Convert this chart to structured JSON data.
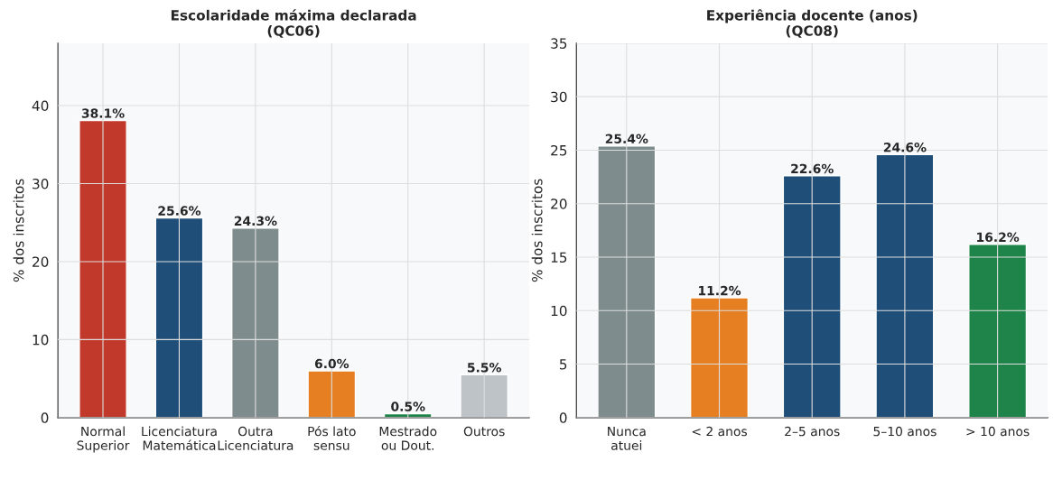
{
  "chart_data": [
    {
      "type": "bar",
      "title": "Escolaridade máxima declarada\n(QC06)",
      "ylabel": "% dos inscritos",
      "categories": [
        "Normal\nSuperior",
        "Licenciatura\nMatemática",
        "Outra\nLicenciatura",
        "Pós lato\nsensu",
        "Mestrado\nou Dout.",
        "Outros"
      ],
      "values": [
        38.1,
        25.6,
        24.3,
        6.0,
        0.5,
        5.5
      ],
      "colors": [
        "#c0392b",
        "#1f4e79",
        "#7f8c8d",
        "#e67e22",
        "#1e8449",
        "#bdc3c7"
      ],
      "value_labels": [
        "38.1%",
        "25.6%",
        "24.3%",
        "6.0%",
        "0.5%",
        "5.5%"
      ],
      "ylim": [
        0,
        48
      ],
      "yticks": [
        0,
        10,
        20,
        30,
        40
      ],
      "grid": true,
      "legend": false
    },
    {
      "type": "bar",
      "title": "Experiência docente (anos)\n(QC08)",
      "ylabel": "% dos inscritos",
      "categories": [
        "Nunca\natuei",
        "< 2 anos",
        "2–5 anos",
        "5–10 anos",
        "> 10 anos"
      ],
      "values": [
        25.4,
        11.2,
        22.6,
        24.6,
        16.2
      ],
      "colors": [
        "#7f8c8d",
        "#e67e22",
        "#1f4e79",
        "#1f4e79",
        "#1e8449"
      ],
      "value_labels": [
        "25.4%",
        "11.2%",
        "22.6%",
        "24.6%",
        "16.2%"
      ],
      "ylim": [
        0,
        35
      ],
      "yticks": [
        0,
        5,
        10,
        15,
        20,
        25,
        30,
        35
      ],
      "grid": true,
      "legend": false
    }
  ]
}
